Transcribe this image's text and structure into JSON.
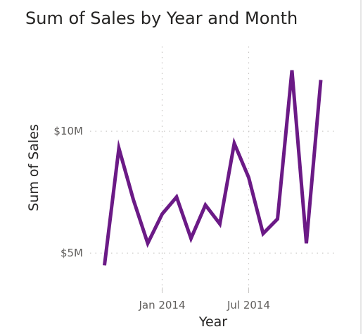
{
  "chart_data": {
    "type": "line",
    "title": "Sum of Sales by Year and Month",
    "xlabel": "Year",
    "ylabel": "Sum of Sales",
    "x": [
      "2013-09",
      "2013-10",
      "2013-11",
      "2013-12",
      "2014-01",
      "2014-02",
      "2014-03",
      "2014-04",
      "2014-05",
      "2014-06",
      "2014-07",
      "2014-08",
      "2014-09",
      "2014-10",
      "2014-11",
      "2014-12",
      "2015-01"
    ],
    "series": [
      {
        "values": [
          4.5,
          9.3,
          7.2,
          5.4,
          6.6,
          7.3,
          5.6,
          6.97,
          6.2,
          9.5,
          8.1,
          5.8,
          6.4,
          12.5,
          5.4,
          12.1,
          null
        ],
        "color": "#6b1a86"
      }
    ],
    "y_ticks": [
      {
        "value": 5,
        "label": "$5M"
      },
      {
        "value": 10,
        "label": "$10M"
      }
    ],
    "x_ticks": [
      {
        "index": 4,
        "label": "Jan 2014"
      },
      {
        "index": 10,
        "label": "Jul 2014"
      }
    ],
    "ylim": [
      4.0,
      13.3
    ],
    "grid": true,
    "legend": "none"
  }
}
